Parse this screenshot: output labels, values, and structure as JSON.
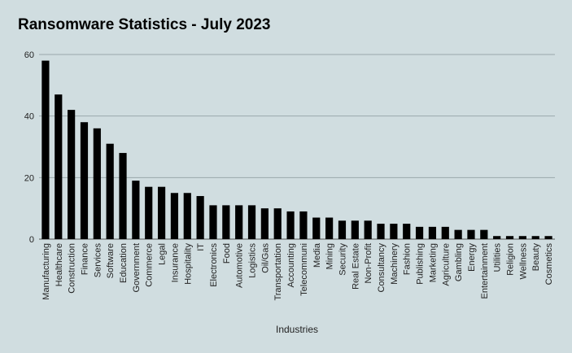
{
  "chart_data": {
    "type": "bar",
    "title": "Ransomware Statistics - July 2023",
    "xlabel": "Industries",
    "ylabel": "",
    "ylim": [
      0,
      60
    ],
    "yticks": [
      0,
      20,
      40,
      60
    ],
    "grid": true,
    "bar_color": "#000000",
    "grid_color": "#9aa8ab",
    "categories": [
      "Manufacturing",
      "Healthcare",
      "Construction",
      "Finance",
      "Services",
      "Software",
      "Education",
      "Government",
      "Commerce",
      "Legal",
      "Insurance",
      "Hospitality",
      "IT",
      "Electronics",
      "Food",
      "Automotive",
      "Logistics",
      "Oil/Gas",
      "Transportation",
      "Accounting",
      "Telecommuni",
      "Media",
      "Mining",
      "Security",
      "Real Estate",
      "Non-Profit",
      "Consultancy",
      "Machinery",
      "Fashion",
      "Publishing",
      "Marketing",
      "Agriculture",
      "Gambling",
      "Energy",
      "Entertainment",
      "Utilities",
      "Religion",
      "Wellness",
      "Beauty",
      "Cosmetics"
    ],
    "values": [
      58,
      47,
      42,
      38,
      36,
      31,
      28,
      19,
      17,
      17,
      15,
      15,
      14,
      11,
      11,
      11,
      11,
      10,
      10,
      9,
      9,
      7,
      7,
      6,
      6,
      6,
      5,
      5,
      5,
      4,
      4,
      4,
      3,
      3,
      3,
      1,
      1,
      1,
      1,
      1
    ]
  }
}
